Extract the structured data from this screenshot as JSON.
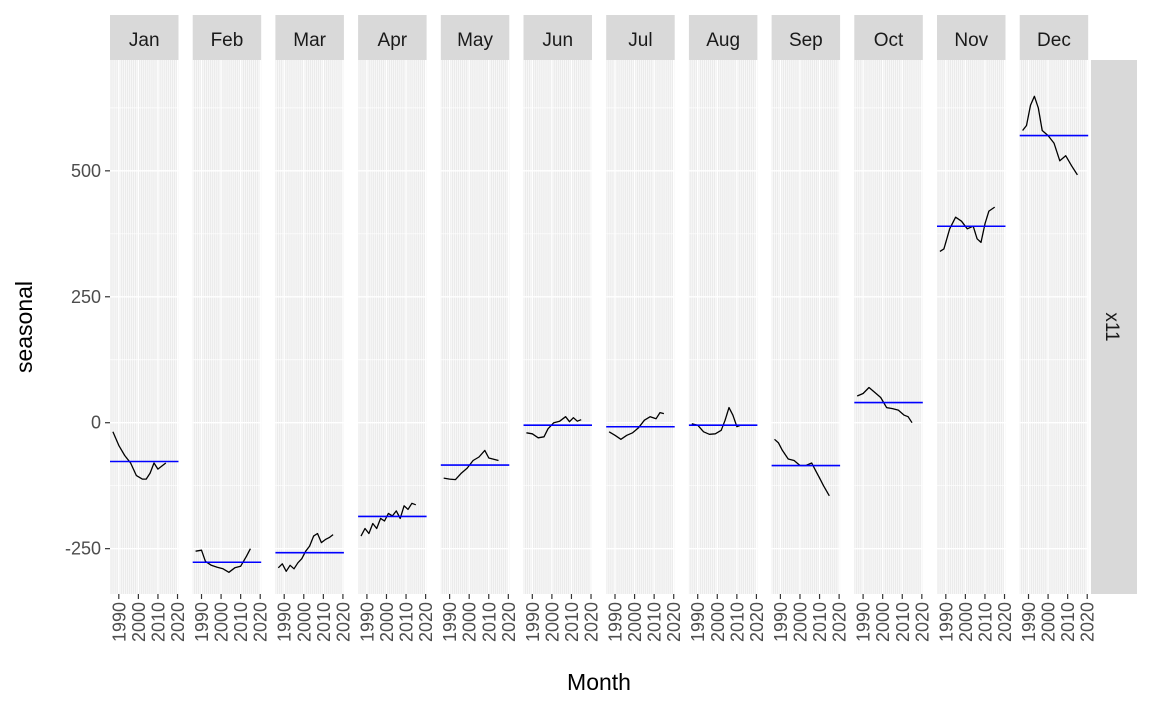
{
  "chart_data": {
    "type": "line",
    "xlabel": "Month",
    "ylabel": "seasonal",
    "facet_row_label": "x11",
    "ylim": [
      -340,
      720
    ],
    "yticks": [
      -250,
      0,
      250,
      500
    ],
    "ytick_labels": [
      "-250",
      "0",
      "250",
      "500"
    ],
    "xlim": [
      1985.5,
      2020.5
    ],
    "xticks": [
      1990,
      2000,
      2010,
      2020
    ],
    "xtick_labels": [
      "1990",
      "2000",
      "2010",
      "2020"
    ],
    "colors": {
      "panel": "#ebebeb",
      "strip": "#d9d9d9",
      "grid": "#ffffff",
      "line": "#000000",
      "mean": "#0000ff"
    },
    "panels": [
      {
        "month": "Jan",
        "mean": -77,
        "series": {
          "x": [
            1987,
            1990,
            1993,
            1996,
            1999,
            2002,
            2004,
            2006,
            2008,
            2010,
            2012,
            2014
          ],
          "y": [
            -18,
            -45,
            -65,
            -80,
            -105,
            -112,
            -112,
            -100,
            -80,
            -92,
            -86,
            -80
          ]
        }
      },
      {
        "month": "Feb",
        "mean": -277,
        "series": {
          "x": [
            1987,
            1990,
            1992,
            1995,
            1998,
            2001,
            2004,
            2007,
            2010,
            2013,
            2015
          ],
          "y": [
            -255,
            -253,
            -275,
            -283,
            -287,
            -290,
            -297,
            -288,
            -285,
            -265,
            -250
          ]
        }
      },
      {
        "month": "Mar",
        "mean": -258,
        "series": {
          "x": [
            1987,
            1989,
            1991,
            1993,
            1995,
            1997,
            1999,
            2001,
            2003,
            2005,
            2007,
            2009,
            2011,
            2013,
            2015
          ],
          "y": [
            -288,
            -280,
            -295,
            -283,
            -290,
            -278,
            -270,
            -255,
            -245,
            -225,
            -220,
            -238,
            -232,
            -228,
            -222
          ]
        }
      },
      {
        "month": "Apr",
        "mean": -186,
        "series": {
          "x": [
            1987,
            1989,
            1991,
            1993,
            1995,
            1997,
            1999,
            2001,
            2003,
            2005,
            2007,
            2009,
            2011,
            2013,
            2015
          ],
          "y": [
            -225,
            -210,
            -220,
            -200,
            -210,
            -190,
            -195,
            -180,
            -185,
            -175,
            -190,
            -165,
            -172,
            -160,
            -163
          ]
        }
      },
      {
        "month": "May",
        "mean": -84,
        "series": {
          "x": [
            1987,
            1990,
            1993,
            1996,
            1999,
            2002,
            2005,
            2008,
            2010,
            2012,
            2015
          ],
          "y": [
            -110,
            -112,
            -113,
            -100,
            -90,
            -75,
            -68,
            -55,
            -70,
            -72,
            -75
          ]
        }
      },
      {
        "month": "Jun",
        "mean": -5,
        "series": {
          "x": [
            1987,
            1990,
            1993,
            1996,
            1998,
            2001,
            2004,
            2007,
            2009,
            2011,
            2013,
            2015
          ],
          "y": [
            -20,
            -22,
            -30,
            -28,
            -12,
            0,
            3,
            12,
            2,
            10,
            3,
            6
          ]
        }
      },
      {
        "month": "Jul",
        "mean": -8,
        "series": {
          "x": [
            1987,
            1990,
            1993,
            1996,
            1999,
            2002,
            2005,
            2008,
            2011,
            2013,
            2015
          ],
          "y": [
            -18,
            -25,
            -33,
            -25,
            -20,
            -10,
            5,
            12,
            8,
            20,
            18
          ]
        }
      },
      {
        "month": "Aug",
        "mean": -5,
        "series": {
          "x": [
            1987,
            1990,
            1993,
            1996,
            1999,
            2002,
            2004,
            2006,
            2008,
            2010,
            2012,
            2015
          ],
          "y": [
            -2,
            -5,
            -18,
            -23,
            -22,
            -15,
            5,
            30,
            15,
            -8,
            -5,
            -5
          ]
        }
      },
      {
        "month": "Sep",
        "mean": -85,
        "series": {
          "x": [
            1987,
            1989,
            1991,
            1994,
            1997,
            2000,
            2003,
            2006,
            2008,
            2010,
            2012,
            2015
          ],
          "y": [
            -33,
            -40,
            -55,
            -72,
            -75,
            -85,
            -85,
            -80,
            -95,
            -110,
            -125,
            -145
          ]
        }
      },
      {
        "month": "Oct",
        "mean": 40,
        "series": {
          "x": [
            1987,
            1990,
            1993,
            1996,
            1999,
            2002,
            2005,
            2008,
            2011,
            2013,
            2015
          ],
          "y": [
            53,
            58,
            70,
            60,
            50,
            30,
            28,
            25,
            15,
            12,
            0
          ]
        }
      },
      {
        "month": "Nov",
        "mean": 390,
        "series": {
          "x": [
            1987,
            1989,
            1992,
            1995,
            1998,
            2001,
            2004,
            2006,
            2008,
            2010,
            2012,
            2015
          ],
          "y": [
            340,
            345,
            385,
            408,
            400,
            385,
            390,
            365,
            358,
            395,
            420,
            428
          ]
        }
      },
      {
        "month": "Dec",
        "mean": 570,
        "series": {
          "x": [
            1987,
            1989,
            1991,
            1993,
            1995,
            1997,
            2000,
            2003,
            2006,
            2009,
            2012,
            2015
          ],
          "y": [
            580,
            590,
            630,
            648,
            625,
            580,
            570,
            555,
            520,
            530,
            510,
            492
          ]
        }
      }
    ]
  }
}
